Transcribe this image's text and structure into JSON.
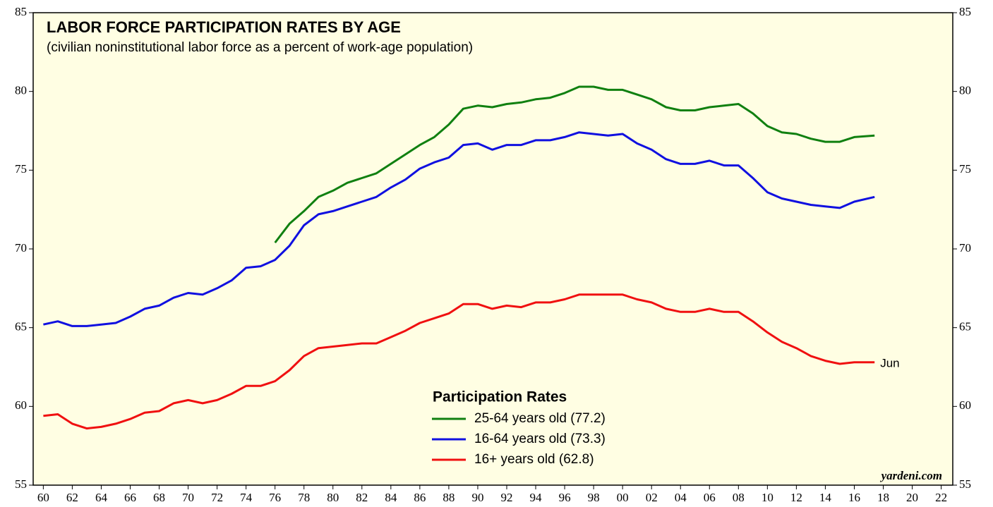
{
  "chart_data": {
    "type": "line",
    "title": "LABOR FORCE PARTICIPATION RATES BY AGE",
    "subtitle": "(civilian noninstitutional labor force as a percent of work-age population)",
    "legend_title": "Participation Rates",
    "annotations": [
      "Jun",
      "yardeni.com"
    ],
    "x": [
      1960,
      1961,
      1962,
      1963,
      1964,
      1965,
      1966,
      1967,
      1968,
      1969,
      1970,
      1971,
      1972,
      1973,
      1974,
      1975,
      1976,
      1977,
      1978,
      1979,
      1980,
      1981,
      1982,
      1983,
      1984,
      1985,
      1986,
      1987,
      1988,
      1989,
      1990,
      1991,
      1992,
      1993,
      1994,
      1995,
      1996,
      1997,
      1998,
      1999,
      2000,
      2001,
      2002,
      2003,
      2004,
      2005,
      2006,
      2007,
      2008,
      2009,
      2010,
      2011,
      2012,
      2013,
      2014,
      2015,
      2016,
      2017.4
    ],
    "series": [
      {
        "name": "25-64 years old (77.2)",
        "color": "#108010",
        "values": [
          null,
          null,
          null,
          null,
          null,
          null,
          null,
          null,
          null,
          null,
          null,
          null,
          null,
          null,
          null,
          null,
          70.4,
          71.6,
          72.4,
          73.3,
          73.7,
          74.2,
          74.5,
          74.8,
          75.4,
          76.0,
          76.6,
          77.1,
          77.9,
          78.9,
          79.1,
          79.0,
          79.2,
          79.3,
          79.5,
          79.6,
          79.9,
          80.3,
          80.3,
          80.1,
          80.1,
          79.8,
          79.5,
          79.0,
          78.8,
          78.8,
          79.0,
          79.1,
          79.2,
          78.6,
          77.8,
          77.4,
          77.3,
          77.0,
          76.8,
          76.8,
          77.1,
          77.2
        ]
      },
      {
        "name": "16-64 years old (73.3)",
        "color": "#1010e0",
        "values": [
          65.2,
          65.4,
          65.1,
          65.1,
          65.2,
          65.3,
          65.7,
          66.2,
          66.4,
          66.9,
          67.2,
          67.1,
          67.5,
          68.0,
          68.8,
          68.9,
          69.3,
          70.2,
          71.5,
          72.2,
          72.4,
          72.7,
          73.0,
          73.3,
          73.9,
          74.4,
          75.1,
          75.5,
          75.8,
          76.6,
          76.7,
          76.3,
          76.6,
          76.6,
          76.9,
          76.9,
          77.1,
          77.4,
          77.3,
          77.2,
          77.3,
          76.7,
          76.3,
          75.7,
          75.4,
          75.4,
          75.6,
          75.3,
          75.3,
          74.5,
          73.6,
          73.2,
          73.0,
          72.8,
          72.7,
          72.6,
          73.0,
          73.3
        ]
      },
      {
        "name": "16+ years old (62.8)",
        "color": "#f01010",
        "values": [
          59.4,
          59.5,
          58.9,
          58.6,
          58.7,
          58.9,
          59.2,
          59.6,
          59.7,
          60.2,
          60.4,
          60.2,
          60.4,
          60.8,
          61.3,
          61.3,
          61.6,
          62.3,
          63.2,
          63.7,
          63.8,
          63.9,
          64.0,
          64.0,
          64.4,
          64.8,
          65.3,
          65.6,
          65.9,
          66.5,
          66.5,
          66.2,
          66.4,
          66.3,
          66.6,
          66.6,
          66.8,
          67.1,
          67.1,
          67.1,
          67.1,
          66.8,
          66.6,
          66.2,
          66.0,
          66.0,
          66.2,
          66.0,
          66.0,
          65.4,
          64.7,
          64.1,
          63.7,
          63.2,
          62.9,
          62.7,
          62.8,
          62.8
        ]
      }
    ],
    "xlim": [
      1959.3,
      2022.8
    ],
    "xticks": [
      {
        "value": 1960,
        "label": "60"
      },
      {
        "value": 1962,
        "label": "62"
      },
      {
        "value": 1964,
        "label": "64"
      },
      {
        "value": 1966,
        "label": "66"
      },
      {
        "value": 1968,
        "label": "68"
      },
      {
        "value": 1970,
        "label": "70"
      },
      {
        "value": 1972,
        "label": "72"
      },
      {
        "value": 1974,
        "label": "74"
      },
      {
        "value": 1976,
        "label": "76"
      },
      {
        "value": 1978,
        "label": "78"
      },
      {
        "value": 1980,
        "label": "80"
      },
      {
        "value": 1982,
        "label": "82"
      },
      {
        "value": 1984,
        "label": "84"
      },
      {
        "value": 1986,
        "label": "86"
      },
      {
        "value": 1988,
        "label": "88"
      },
      {
        "value": 1990,
        "label": "90"
      },
      {
        "value": 1992,
        "label": "92"
      },
      {
        "value": 1994,
        "label": "94"
      },
      {
        "value": 1996,
        "label": "96"
      },
      {
        "value": 1998,
        "label": "98"
      },
      {
        "value": 2000,
        "label": "00"
      },
      {
        "value": 2002,
        "label": "02"
      },
      {
        "value": 2004,
        "label": "04"
      },
      {
        "value": 2006,
        "label": "06"
      },
      {
        "value": 2008,
        "label": "08"
      },
      {
        "value": 2010,
        "label": "10"
      },
      {
        "value": 2012,
        "label": "12"
      },
      {
        "value": 2014,
        "label": "14"
      },
      {
        "value": 2016,
        "label": "16"
      },
      {
        "value": 2018,
        "label": "18"
      },
      {
        "value": 2020,
        "label": "20"
      },
      {
        "value": 2022,
        "label": "22"
      }
    ],
    "ylim": [
      55,
      85
    ],
    "yticks": [
      55,
      60,
      65,
      70,
      75,
      80,
      85
    ],
    "y2lim": [
      55,
      85
    ],
    "y2ticks": [
      55,
      60,
      65,
      70,
      75,
      80,
      85
    ],
    "grid": false,
    "background": "#fffee3"
  }
}
